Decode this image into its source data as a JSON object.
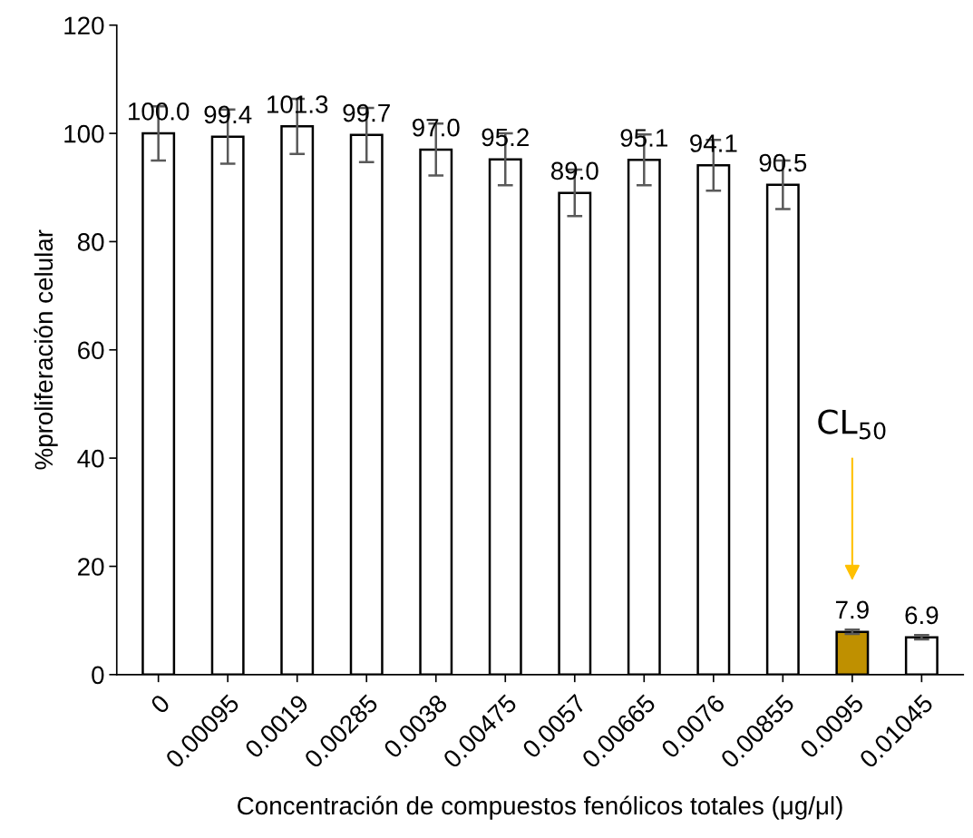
{
  "chart_data": {
    "type": "bar",
    "xlabel": "Concentración de compuestos fenólicos totales (μg/μl)",
    "ylabel": "%proliferación celular",
    "categories": [
      "0",
      "0.00095",
      "0.0019",
      "0.00285",
      "0.0038",
      "0.00475",
      "0.0057",
      "0.00665",
      "0.0076",
      "0.00855",
      "0.0095",
      "0.01045"
    ],
    "values": [
      100.0,
      99.4,
      101.3,
      99.7,
      97.0,
      95.2,
      89.0,
      95.1,
      94.1,
      90.5,
      7.9,
      6.9
    ],
    "errors": [
      5.0,
      5.0,
      5.1,
      5.0,
      4.8,
      4.8,
      4.3,
      4.7,
      4.7,
      4.5,
      0.4,
      0.4
    ],
    "colors": [
      "#ffffff",
      "#ffffff",
      "#ffffff",
      "#ffffff",
      "#ffffff",
      "#ffffff",
      "#ffffff",
      "#ffffff",
      "#ffffff",
      "#ffffff",
      "#bf9000",
      "#ffffff"
    ],
    "value_labels": [
      "100.0",
      "99.4",
      "101.3",
      "99.7",
      "97.0",
      "95.2",
      "89.0",
      "95.1",
      "94.1",
      "90.5",
      "7.9",
      "6.9"
    ],
    "ylim": [
      0,
      120
    ],
    "yticks": [
      0,
      20,
      40,
      60,
      80,
      100,
      120
    ],
    "grid": false,
    "legend": false,
    "annotations": [
      "CL$_{50}$"
    ]
  }
}
